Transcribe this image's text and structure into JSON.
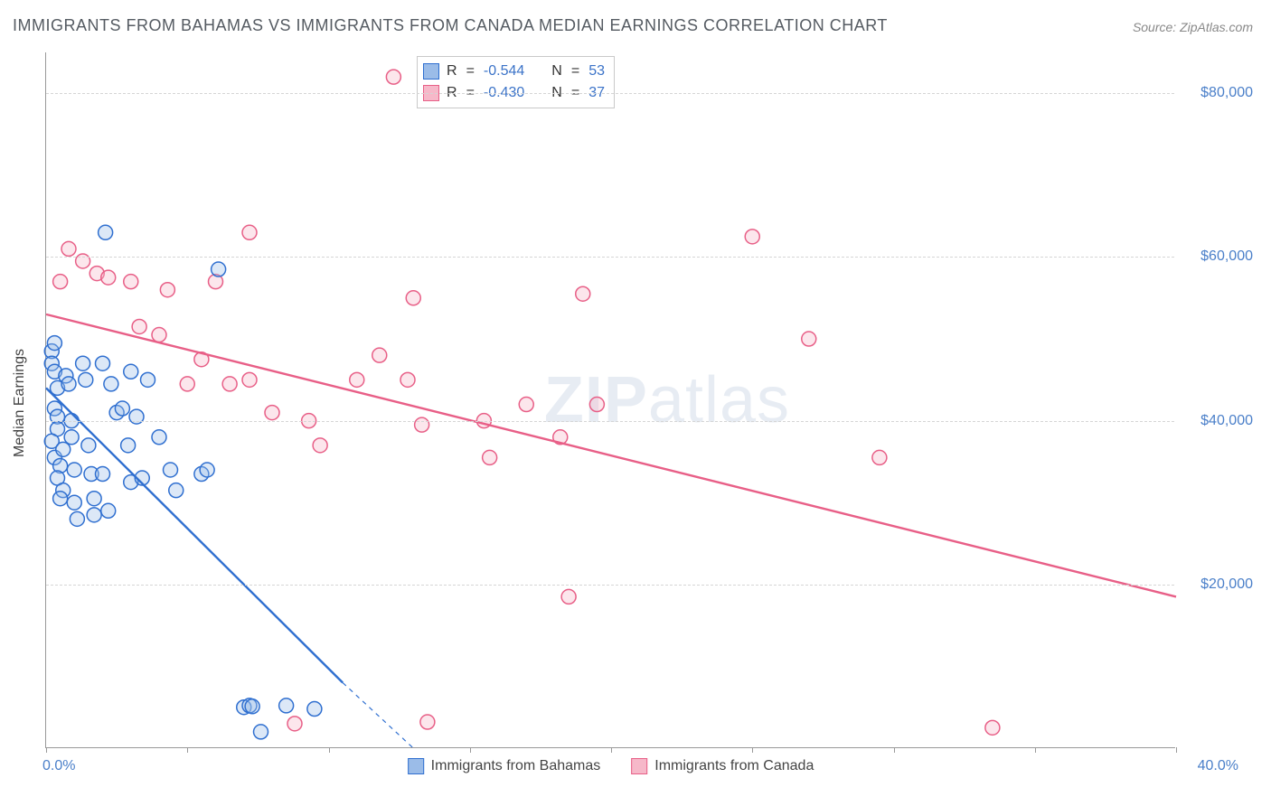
{
  "title": "IMMIGRANTS FROM BAHAMAS VS IMMIGRANTS FROM CANADA MEDIAN EARNINGS CORRELATION CHART",
  "source": "Source: ZipAtlas.com",
  "watermark_a": "ZIP",
  "watermark_b": "atlas",
  "y_axis_title": "Median Earnings",
  "chart": {
    "type": "scatter-with-regression",
    "background_color": "#ffffff",
    "grid_color": "#d5d5d5",
    "axis_color": "#999999",
    "text_color": "#555b62",
    "value_color": "#4a7fc9",
    "xlim": [
      0,
      40
    ],
    "ylim": [
      0,
      85000
    ],
    "x_tick_positions": [
      0,
      5,
      10,
      15,
      20,
      25,
      30,
      35,
      40
    ],
    "x_tick_labels": {
      "0": "0.0%",
      "40": "40.0%"
    },
    "y_ticks": [
      20000,
      40000,
      60000,
      80000
    ],
    "y_tick_labels": [
      "$20,000",
      "$40,000",
      "$60,000",
      "$80,000"
    ],
    "marker_radius": 8,
    "marker_stroke_width": 1.5,
    "marker_fill_opacity": 0.35,
    "line_width": 2.4,
    "series": [
      {
        "id": "bahamas",
        "label": "Immigrants from Bahamas",
        "color_stroke": "#2f6fd0",
        "color_fill": "#9bbce8",
        "R": "-0.544",
        "N": "53",
        "regression": {
          "x1": 0,
          "y1": 44000,
          "x2": 10.5,
          "y2": 8000,
          "x2_dash": 13,
          "y2_dash": 0
        },
        "points": [
          [
            0.2,
            48500
          ],
          [
            0.2,
            47000
          ],
          [
            0.3,
            49500
          ],
          [
            0.3,
            46000
          ],
          [
            0.4,
            44000
          ],
          [
            0.3,
            41500
          ],
          [
            0.4,
            40500
          ],
          [
            0.4,
            39000
          ],
          [
            0.2,
            37500
          ],
          [
            0.3,
            35500
          ],
          [
            0.5,
            34500
          ],
          [
            0.4,
            33000
          ],
          [
            0.6,
            31500
          ],
          [
            0.5,
            30500
          ],
          [
            0.7,
            45500
          ],
          [
            0.8,
            44500
          ],
          [
            0.9,
            40000
          ],
          [
            0.9,
            38000
          ],
          [
            0.6,
            36500
          ],
          [
            1.0,
            34000
          ],
          [
            1.0,
            30000
          ],
          [
            1.1,
            28000
          ],
          [
            1.3,
            47000
          ],
          [
            1.4,
            45000
          ],
          [
            1.5,
            37000
          ],
          [
            1.6,
            33500
          ],
          [
            1.7,
            30500
          ],
          [
            1.7,
            28500
          ],
          [
            2.1,
            63000
          ],
          [
            2.0,
            47000
          ],
          [
            2.0,
            33500
          ],
          [
            2.2,
            29000
          ],
          [
            2.3,
            44500
          ],
          [
            2.5,
            41000
          ],
          [
            2.7,
            41500
          ],
          [
            2.9,
            37000
          ],
          [
            3.0,
            32500
          ],
          [
            3.0,
            46000
          ],
          [
            3.2,
            40500
          ],
          [
            3.4,
            33000
          ],
          [
            3.6,
            45000
          ],
          [
            4.0,
            38000
          ],
          [
            4.4,
            34000
          ],
          [
            4.6,
            31500
          ],
          [
            5.5,
            33500
          ],
          [
            5.7,
            34000
          ],
          [
            6.1,
            58500
          ],
          [
            7.0,
            5000
          ],
          [
            7.2,
            5200
          ],
          [
            7.3,
            5100
          ],
          [
            7.6,
            2000
          ],
          [
            8.5,
            5200
          ],
          [
            9.5,
            4800
          ]
        ]
      },
      {
        "id": "canada",
        "label": "Immigrants from Canada",
        "color_stroke": "#e85f87",
        "color_fill": "#f6b8c9",
        "R": "-0.430",
        "N": "37",
        "regression": {
          "x1": 0,
          "y1": 53000,
          "x2": 40,
          "y2": 18500
        },
        "points": [
          [
            0.5,
            57000
          ],
          [
            0.8,
            61000
          ],
          [
            1.3,
            59500
          ],
          [
            1.8,
            58000
          ],
          [
            2.2,
            57500
          ],
          [
            3.0,
            57000
          ],
          [
            3.3,
            51500
          ],
          [
            4.0,
            50500
          ],
          [
            4.3,
            56000
          ],
          [
            5.0,
            44500
          ],
          [
            5.5,
            47500
          ],
          [
            6.0,
            57000
          ],
          [
            6.5,
            44500
          ],
          [
            7.2,
            63000
          ],
          [
            7.2,
            45000
          ],
          [
            8.0,
            41000
          ],
          [
            8.8,
            3000
          ],
          [
            9.3,
            40000
          ],
          [
            9.7,
            37000
          ],
          [
            11.0,
            45000
          ],
          [
            11.8,
            48000
          ],
          [
            12.3,
            82000
          ],
          [
            12.8,
            45000
          ],
          [
            13.0,
            55000
          ],
          [
            13.3,
            39500
          ],
          [
            13.5,
            3200
          ],
          [
            15.5,
            40000
          ],
          [
            15.7,
            35500
          ],
          [
            17.0,
            42000
          ],
          [
            18.2,
            38000
          ],
          [
            18.5,
            18500
          ],
          [
            19.0,
            55500
          ],
          [
            19.5,
            42000
          ],
          [
            25.0,
            62500
          ],
          [
            27.0,
            50000
          ],
          [
            29.5,
            35500
          ],
          [
            33.5,
            2500
          ]
        ]
      }
    ]
  },
  "legend_top_labels": {
    "R": "R",
    "N": "N",
    "eq": "="
  }
}
